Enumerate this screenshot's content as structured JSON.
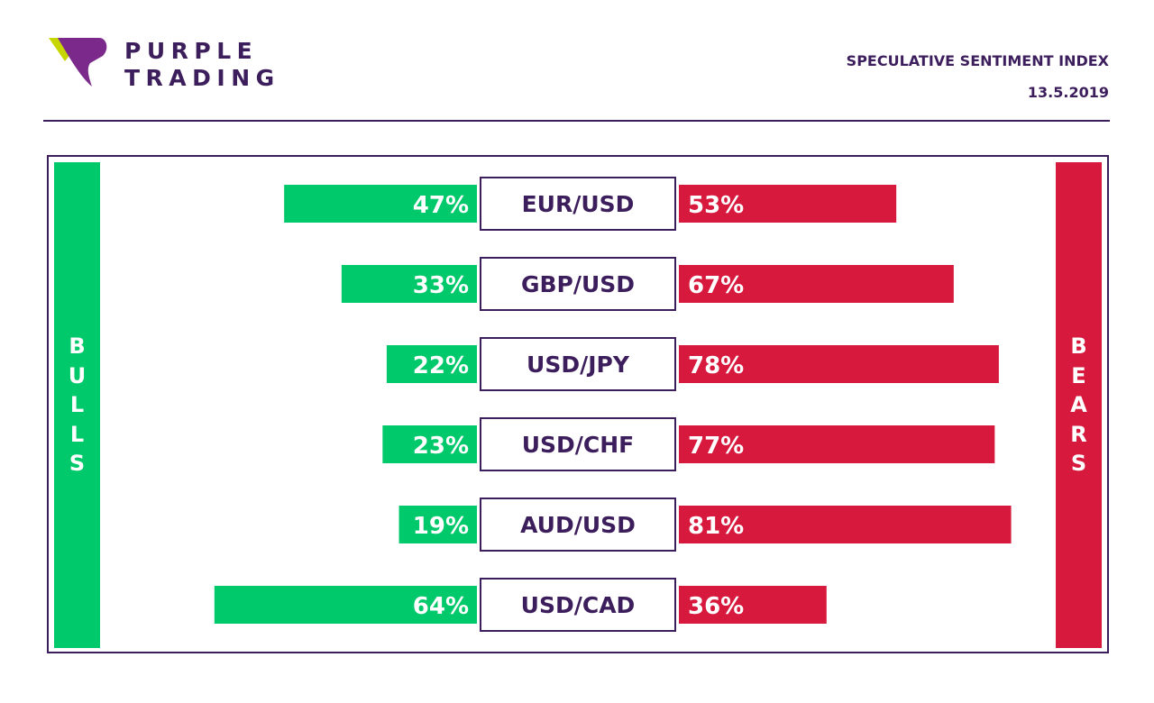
{
  "brand": {
    "line1": "PURPLE",
    "line2": "TRADING"
  },
  "header": {
    "title": "SPECULATIVE SENTIMENT INDEX",
    "date": "13.5.2019"
  },
  "legend": {
    "bulls": "BULLS",
    "bears": "BEARS"
  },
  "colors": {
    "bulls": "#00c96b",
    "bears": "#d7193e",
    "brand": "#3d1e5c",
    "logo_purple": "#7b2a8c",
    "logo_lime": "#c8d600"
  },
  "chart_data": {
    "type": "bar",
    "title": "SPECULATIVE SENTIMENT INDEX",
    "categories": [
      "EUR/USD",
      "GBP/USD",
      "USD/JPY",
      "USD/CHF",
      "AUD/USD",
      "USD/CAD"
    ],
    "series": [
      {
        "name": "BULLS",
        "values": [
          47,
          33,
          22,
          23,
          19,
          64
        ],
        "labels": [
          "47%",
          "33%",
          "22%",
          "23%",
          "19%",
          "64%"
        ]
      },
      {
        "name": "BEARS",
        "values": [
          53,
          67,
          78,
          77,
          81,
          36
        ],
        "labels": [
          "53%",
          "67%",
          "78%",
          "77%",
          "81%",
          "36%"
        ]
      }
    ]
  }
}
